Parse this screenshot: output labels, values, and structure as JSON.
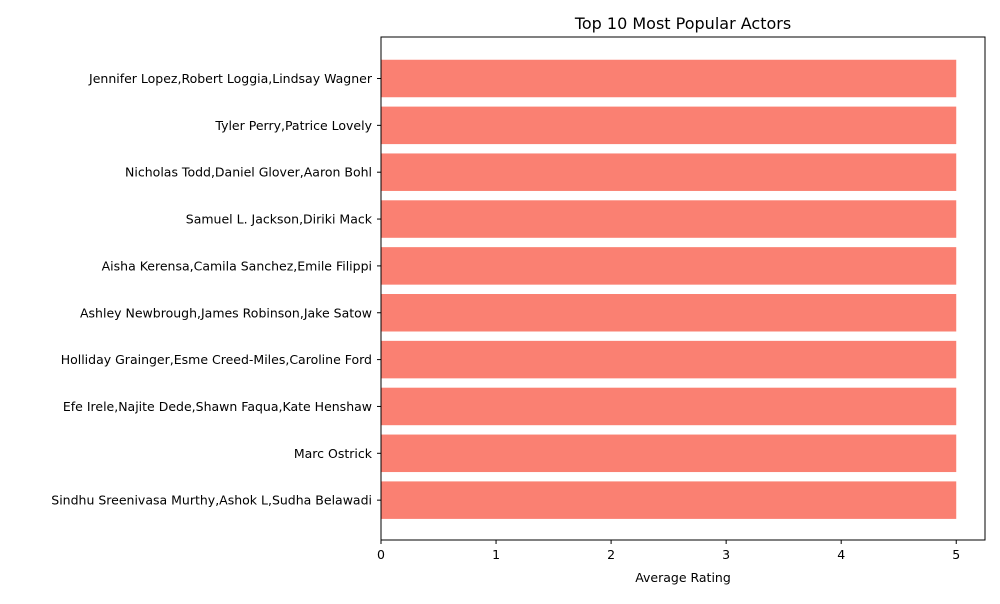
{
  "chart_data": {
    "type": "bar",
    "orientation": "horizontal",
    "title": "Top 10 Most Popular Actors",
    "xlabel": "Average Rating",
    "ylabel": "",
    "xlim": [
      0,
      5.25
    ],
    "xticks": [
      0,
      1,
      2,
      3,
      4,
      5
    ],
    "grid": false,
    "bar_color": "#FA8072",
    "categories": [
      "Jennifer Lopez,Robert Loggia,Lindsay Wagner",
      "Tyler Perry,Patrice Lovely",
      "Nicholas Todd,Daniel Glover,Aaron Bohl",
      "Samuel L. Jackson,Diriki Mack",
      "Aisha Kerensa,Camila Sanchez,Emile Filippi",
      "Ashley Newbrough,James Robinson,Jake Satow",
      "Holliday Grainger,Esme Creed-Miles,Caroline Ford",
      "Efe Irele,Najite Dede,Shawn Faqua,Kate Henshaw",
      "Marc Ostrick",
      "Sindhu Sreenivasa Murthy,Ashok L,Sudha Belawadi"
    ],
    "values": [
      5,
      5,
      5,
      5,
      5,
      5,
      5,
      5,
      5,
      5
    ]
  }
}
